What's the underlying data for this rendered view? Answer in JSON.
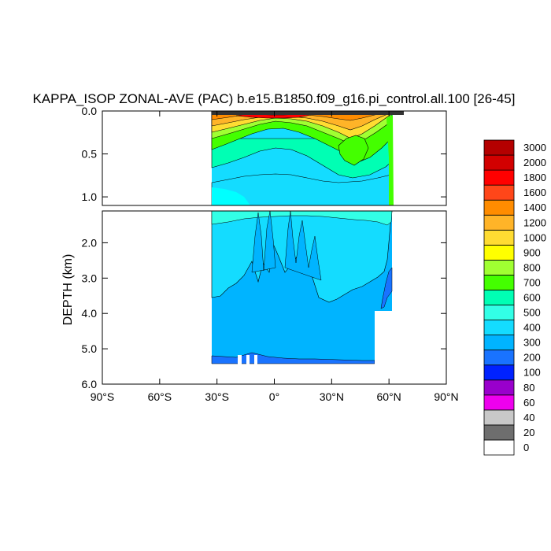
{
  "chart_data": {
    "type": "heatmap",
    "title": "KAPPA_ISOP ZONAL-AVE (PAC) b.e15.B1850.f09_g16.pi_control.all.100 [26-45]",
    "xlabel": "",
    "ylabel": "DEPTH (km)",
    "xlim": [
      -90,
      90
    ],
    "x_ticks": [
      {
        "value": -90,
        "label": "90°S"
      },
      {
        "value": -60,
        "label": "60°S"
      },
      {
        "value": -30,
        "label": "30°S"
      },
      {
        "value": 0,
        "label": "0°"
      },
      {
        "value": 30,
        "label": "30°N"
      },
      {
        "value": 60,
        "label": "60°N"
      },
      {
        "value": 90,
        "label": "90°N"
      }
    ],
    "upper_panel": {
      "ylim": [
        0.0,
        1.1
      ],
      "y_ticks": [
        {
          "value": 0.0,
          "label": "0.0"
        },
        {
          "value": 0.5,
          "label": "0.5"
        },
        {
          "value": 1.0,
          "label": "1.0"
        }
      ]
    },
    "lower_panel": {
      "ylim": [
        1.1,
        6.0
      ],
      "y_ticks": [
        {
          "value": 2.0,
          "label": "2.0"
        },
        {
          "value": 3.0,
          "label": "3.0"
        },
        {
          "value": 4.0,
          "label": "4.0"
        },
        {
          "value": 5.0,
          "label": "5.0"
        },
        {
          "value": 6.0,
          "label": "6.0"
        }
      ]
    },
    "ocean_domain": {
      "lat_south": -34,
      "lat_north": 62,
      "max_depth_km": 5.35
    },
    "colorbar": {
      "placement": "right",
      "levels": [
        "0",
        "20",
        "40",
        "60",
        "80",
        "100",
        "200",
        "300",
        "400",
        "500",
        "600",
        "700",
        "800",
        "900",
        "1000",
        "1200",
        "1400",
        "1600",
        "1800",
        "2000",
        "3000"
      ],
      "colors": [
        "#ffffff",
        "#6e6e6e",
        "#c8c8c8",
        "#ee00ee",
        "#9900cc",
        "#0022ff",
        "#1973ff",
        "#00b4ff",
        "#14dcff",
        "#32ffe6",
        "#00ffb4",
        "#44ff00",
        "#a0ff32",
        "#ffff00",
        "#ffdc32",
        "#ffb428",
        "#ff8c00",
        "#ff4619",
        "#ff0000",
        "#d20000",
        "#b40000"
      ]
    }
  }
}
